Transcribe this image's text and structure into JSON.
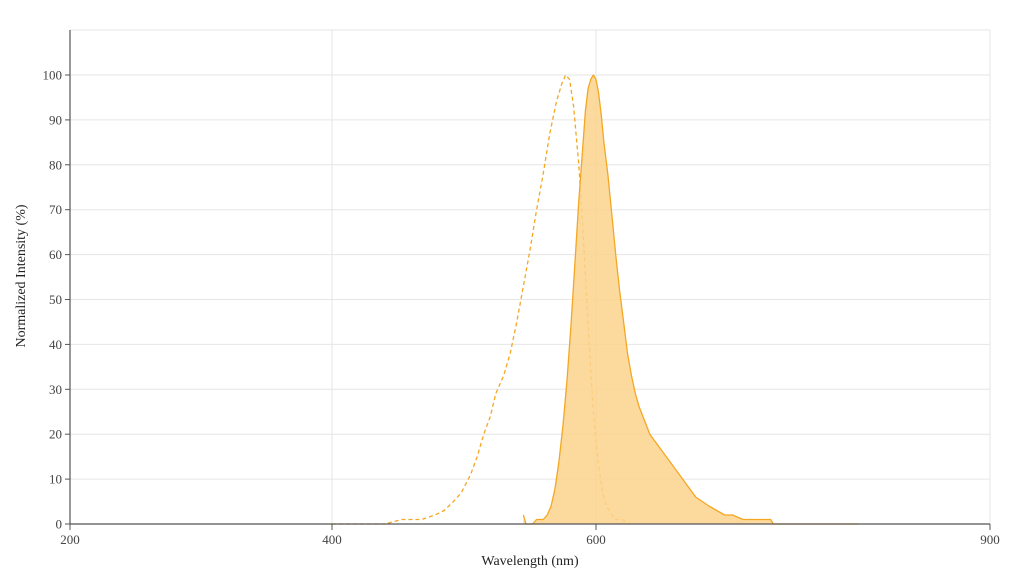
{
  "chart_data": {
    "type": "line",
    "xlabel": "Wavelength (nm)",
    "ylabel": "Normalized Intensity (%)",
    "xlim": [
      200,
      900
    ],
    "ylim": [
      0,
      110
    ],
    "xticks": [
      200,
      400,
      600,
      900
    ],
    "yticks": [
      0,
      10,
      20,
      30,
      40,
      50,
      60,
      70,
      80,
      90,
      100
    ],
    "x_log_scale": false,
    "grid": true,
    "legend": "none",
    "series": [
      {
        "style": "dashed",
        "filled": false,
        "color": "#f5a623",
        "points": [
          [
            400,
            0
          ],
          [
            440,
            0
          ],
          [
            453,
            1
          ],
          [
            468,
            1
          ],
          [
            478,
            2
          ],
          [
            485,
            3
          ],
          [
            492,
            5
          ],
          [
            498,
            7
          ],
          [
            505,
            11
          ],
          [
            510,
            15
          ],
          [
            515,
            20
          ],
          [
            520,
            24
          ],
          [
            524,
            29
          ],
          [
            530,
            33
          ],
          [
            535,
            38
          ],
          [
            540,
            45
          ],
          [
            545,
            53
          ],
          [
            550,
            61
          ],
          [
            555,
            70
          ],
          [
            560,
            78
          ],
          [
            565,
            87
          ],
          [
            570,
            94
          ],
          [
            574,
            98
          ],
          [
            577,
            100
          ],
          [
            580,
            99
          ],
          [
            583,
            93
          ],
          [
            587,
            80
          ],
          [
            590,
            66
          ],
          [
            593,
            50
          ],
          [
            596,
            34
          ],
          [
            599,
            21
          ],
          [
            602,
            13
          ],
          [
            605,
            7
          ],
          [
            608,
            4
          ],
          [
            612,
            2
          ],
          [
            615,
            1
          ],
          [
            620,
            1
          ],
          [
            625,
            0
          ]
        ]
      },
      {
        "style": "solid",
        "filled": true,
        "color": "#f5a623",
        "fill_color": "#fbd48c",
        "points": [
          [
            545,
            2
          ],
          [
            547,
            0
          ],
          [
            552,
            0
          ],
          [
            555,
            1
          ],
          [
            560,
            1
          ],
          [
            563,
            2
          ],
          [
            566,
            4
          ],
          [
            569,
            8
          ],
          [
            572,
            14
          ],
          [
            575,
            22
          ],
          [
            578,
            32
          ],
          [
            581,
            44
          ],
          [
            584,
            58
          ],
          [
            587,
            72
          ],
          [
            590,
            84
          ],
          [
            592,
            92
          ],
          [
            594,
            97
          ],
          [
            596,
            99
          ],
          [
            598,
            100
          ],
          [
            600,
            99
          ],
          [
            602,
            96
          ],
          [
            604,
            91
          ],
          [
            606,
            85
          ],
          [
            609,
            78
          ],
          [
            612,
            69
          ],
          [
            615,
            60
          ],
          [
            618,
            52
          ],
          [
            621,
            45
          ],
          [
            624,
            38
          ],
          [
            627,
            33
          ],
          [
            630,
            29
          ],
          [
            633,
            26
          ],
          [
            637,
            23
          ],
          [
            641,
            20
          ],
          [
            646,
            18
          ],
          [
            651,
            16
          ],
          [
            656,
            14
          ],
          [
            661,
            12
          ],
          [
            666,
            10
          ],
          [
            671,
            8
          ],
          [
            676,
            6
          ],
          [
            681,
            5
          ],
          [
            686,
            4
          ],
          [
            692,
            3
          ],
          [
            698,
            2
          ],
          [
            704,
            2
          ],
          [
            712,
            1
          ],
          [
            720,
            1
          ],
          [
            733,
            1
          ],
          [
            735,
            0
          ],
          [
            800,
            0
          ]
        ]
      }
    ]
  }
}
